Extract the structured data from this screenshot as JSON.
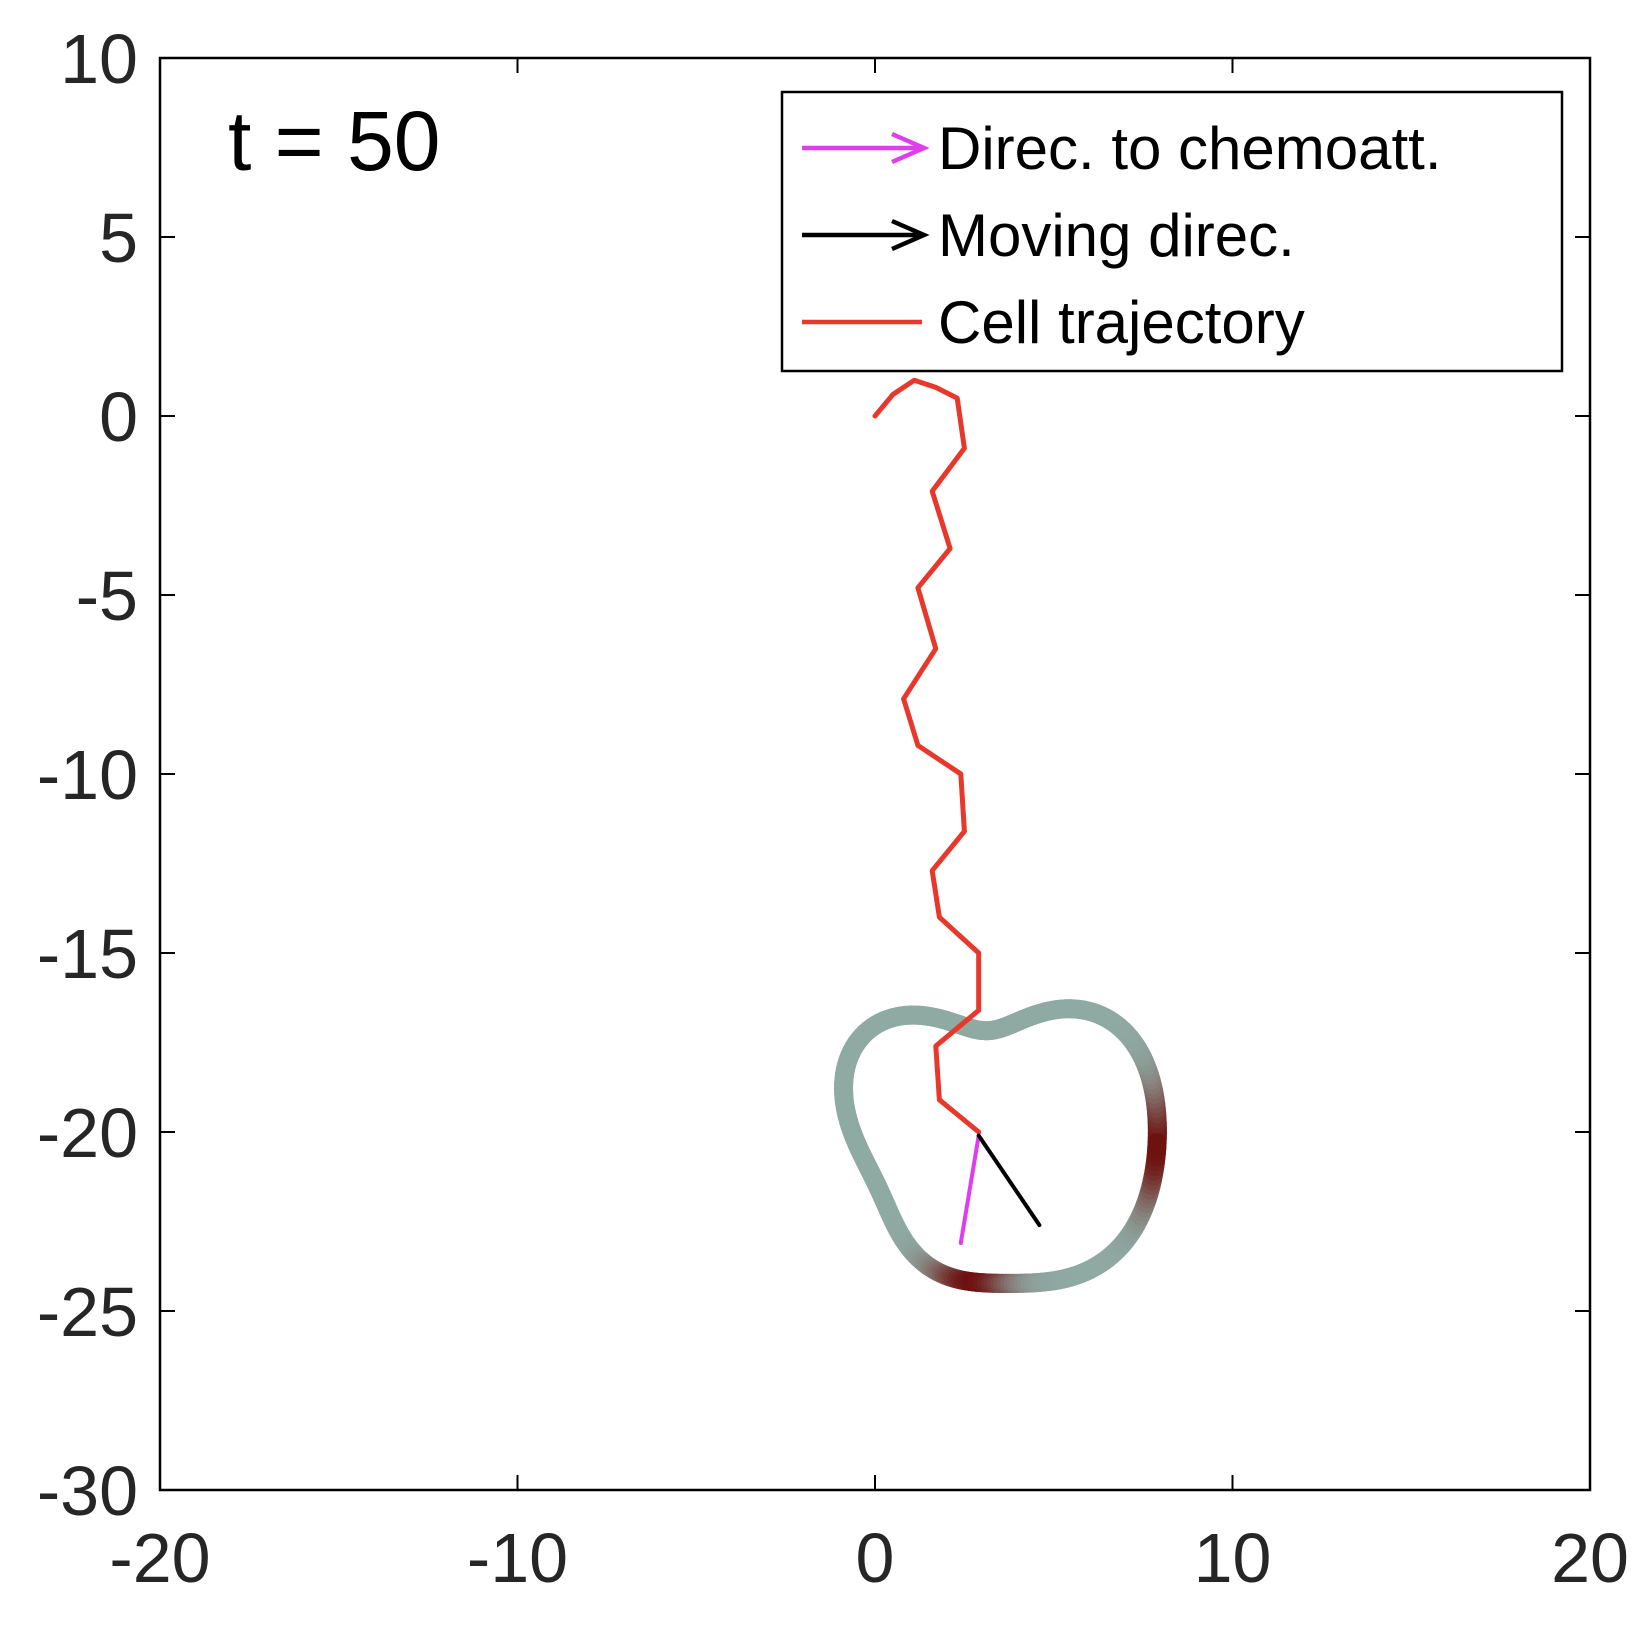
{
  "chart_data": {
    "type": "line",
    "title": "",
    "xlabel": "",
    "ylabel": "",
    "xlim": [
      -20,
      20
    ],
    "ylim": [
      -30,
      10
    ],
    "xticks": [
      -20,
      -10,
      0,
      10,
      20
    ],
    "yticks": [
      10,
      5,
      0,
      -5,
      -10,
      -15,
      -20,
      -25,
      -30
    ],
    "xtick_labels": [
      "-20",
      "-10",
      "0",
      "10",
      "20"
    ],
    "ytick_labels": [
      "10",
      "5",
      "0",
      "-5",
      "-10",
      "-15",
      "-20",
      "-25",
      "-30"
    ],
    "grid": false,
    "annotation": "t = 50",
    "legend": {
      "placement": "top-right",
      "entries": [
        {
          "label": "Direc. to chemoatt.",
          "color": "#e03cf0",
          "marker": "arrow"
        },
        {
          "label": "Moving direc.",
          "color": "#000000",
          "marker": "arrow"
        },
        {
          "label": "Cell trajectory",
          "color": "#e8372b",
          "marker": "line"
        }
      ]
    },
    "series": [
      {
        "name": "Cell trajectory",
        "color": "#e8372b",
        "points": [
          [
            0,
            0
          ],
          [
            0.5,
            0.6
          ],
          [
            1.1,
            1.0
          ],
          [
            1.7,
            0.8
          ],
          [
            2.3,
            0.5
          ],
          [
            2.5,
            -0.9
          ],
          [
            1.6,
            -2.1
          ],
          [
            2.1,
            -3.7
          ],
          [
            1.2,
            -4.8
          ],
          [
            1.7,
            -6.5
          ],
          [
            0.8,
            -7.9
          ],
          [
            1.2,
            -9.2
          ],
          [
            2.4,
            -10.0
          ],
          [
            2.5,
            -11.6
          ],
          [
            1.6,
            -12.7
          ],
          [
            1.8,
            -14.0
          ],
          [
            2.9,
            -15.0
          ],
          [
            2.9,
            -16.6
          ],
          [
            1.7,
            -17.6
          ],
          [
            1.8,
            -19.1
          ],
          [
            2.9,
            -20.0
          ]
        ]
      },
      {
        "name": "Direc. to chemoatt.",
        "color": "#e03cf0",
        "points": [
          [
            2.9,
            -20.1
          ],
          [
            2.4,
            -23.1
          ]
        ]
      },
      {
        "name": "Moving direc.",
        "color": "#000000",
        "points": [
          [
            2.9,
            -20.1
          ],
          [
            4.6,
            -22.6
          ]
        ]
      }
    ],
    "cell_outline": {
      "center": [
        3.3,
        -20.3
      ],
      "base_color": "#8fa9a3",
      "hot_color": "#6e1210",
      "hot_angles_deg": [
        0,
        262
      ]
    }
  }
}
